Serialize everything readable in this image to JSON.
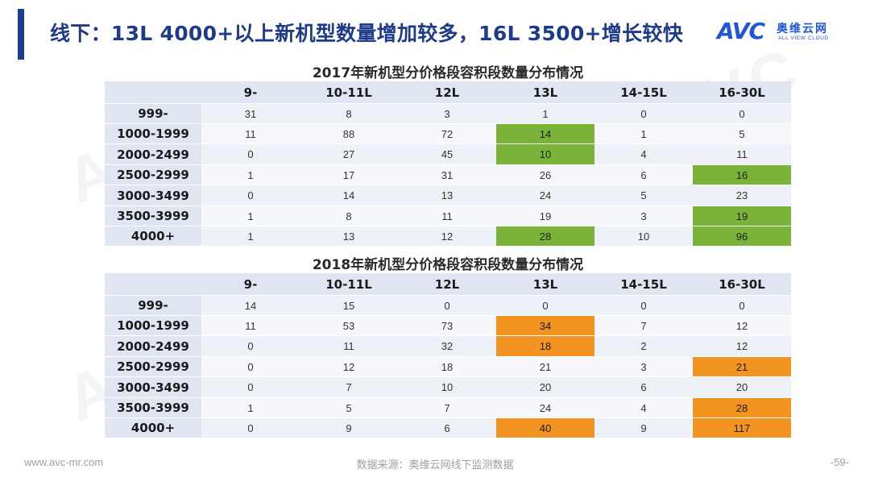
{
  "header": {
    "title": "线下：13L 4000+以上新机型数量增加较多，16L 3500+增长较快"
  },
  "logo": {
    "mark": "AVC",
    "cn": "奥维云网",
    "en": "ALL VIEW CLOUD",
    "watermark": "AVC"
  },
  "colors": {
    "accent": "#1e3a8a",
    "highlight_2017": "#7ab33a",
    "highlight_2018": "#f29322",
    "header_fill": "#dfe5f1"
  },
  "tables": [
    {
      "title": "2017年新机型分价格段容积段数量分布情况",
      "columns": [
        "9-",
        "10-11L",
        "12L",
        "13L",
        "14-15L",
        "16-30L"
      ],
      "highlight": "green",
      "rows": [
        {
          "label": "999-",
          "cells": [
            {
              "v": "31"
            },
            {
              "v": "8"
            },
            {
              "v": "3"
            },
            {
              "v": "1"
            },
            {
              "v": "0"
            },
            {
              "v": "0"
            }
          ]
        },
        {
          "label": "1000-1999",
          "cells": [
            {
              "v": "11"
            },
            {
              "v": "88"
            },
            {
              "v": "72"
            },
            {
              "v": "14",
              "hl": true
            },
            {
              "v": "1"
            },
            {
              "v": "5"
            }
          ]
        },
        {
          "label": "2000-2499",
          "cells": [
            {
              "v": "0"
            },
            {
              "v": "27"
            },
            {
              "v": "45"
            },
            {
              "v": "10",
              "hl": true
            },
            {
              "v": "4"
            },
            {
              "v": "11"
            }
          ]
        },
        {
          "label": "2500-2999",
          "cells": [
            {
              "v": "1"
            },
            {
              "v": "17"
            },
            {
              "v": "31"
            },
            {
              "v": "26"
            },
            {
              "v": "6"
            },
            {
              "v": "16",
              "hl": true
            }
          ]
        },
        {
          "label": "3000-3499",
          "cells": [
            {
              "v": "0"
            },
            {
              "v": "14"
            },
            {
              "v": "13"
            },
            {
              "v": "24"
            },
            {
              "v": "5"
            },
            {
              "v": "23"
            }
          ]
        },
        {
          "label": "3500-3999",
          "cells": [
            {
              "v": "1"
            },
            {
              "v": "8"
            },
            {
              "v": "11"
            },
            {
              "v": "19"
            },
            {
              "v": "3"
            },
            {
              "v": "19",
              "hl": true
            }
          ]
        },
        {
          "label": "4000+",
          "cells": [
            {
              "v": "1"
            },
            {
              "v": "13"
            },
            {
              "v": "12"
            },
            {
              "v": "28",
              "hl": true
            },
            {
              "v": "10"
            },
            {
              "v": "96",
              "hl": true
            }
          ]
        }
      ]
    },
    {
      "title": "2018年新机型分价格段容积段数量分布情况",
      "columns": [
        "9-",
        "10-11L",
        "12L",
        "13L",
        "14-15L",
        "16-30L"
      ],
      "highlight": "orange",
      "rows": [
        {
          "label": "999-",
          "cells": [
            {
              "v": "14"
            },
            {
              "v": "15"
            },
            {
              "v": "0"
            },
            {
              "v": "0"
            },
            {
              "v": "0"
            },
            {
              "v": "0"
            }
          ]
        },
        {
          "label": "1000-1999",
          "cells": [
            {
              "v": "11"
            },
            {
              "v": "53"
            },
            {
              "v": "73"
            },
            {
              "v": "34",
              "hl": true
            },
            {
              "v": "7"
            },
            {
              "v": "12"
            }
          ]
        },
        {
          "label": "2000-2499",
          "cells": [
            {
              "v": "0"
            },
            {
              "v": "11"
            },
            {
              "v": "32"
            },
            {
              "v": "18",
              "hl": true
            },
            {
              "v": "2"
            },
            {
              "v": "12"
            }
          ]
        },
        {
          "label": "2500-2999",
          "cells": [
            {
              "v": "0"
            },
            {
              "v": "12"
            },
            {
              "v": "18"
            },
            {
              "v": "21"
            },
            {
              "v": "3"
            },
            {
              "v": "21",
              "hl": true
            }
          ]
        },
        {
          "label": "3000-3499",
          "cells": [
            {
              "v": "0"
            },
            {
              "v": "7"
            },
            {
              "v": "10"
            },
            {
              "v": "20"
            },
            {
              "v": "6"
            },
            {
              "v": "20"
            }
          ]
        },
        {
          "label": "3500-3999",
          "cells": [
            {
              "v": "1"
            },
            {
              "v": "5"
            },
            {
              "v": "7"
            },
            {
              "v": "24"
            },
            {
              "v": "4"
            },
            {
              "v": "28",
              "hl": true
            }
          ]
        },
        {
          "label": "4000+",
          "cells": [
            {
              "v": "0"
            },
            {
              "v": "9"
            },
            {
              "v": "6"
            },
            {
              "v": "40",
              "hl": true
            },
            {
              "v": "9"
            },
            {
              "v": "117",
              "hl": true
            }
          ]
        }
      ]
    }
  ],
  "footer": {
    "website": "www.avc-mr.com",
    "source": "数据来源：奥维云网线下监测数据",
    "page": "-59-"
  }
}
